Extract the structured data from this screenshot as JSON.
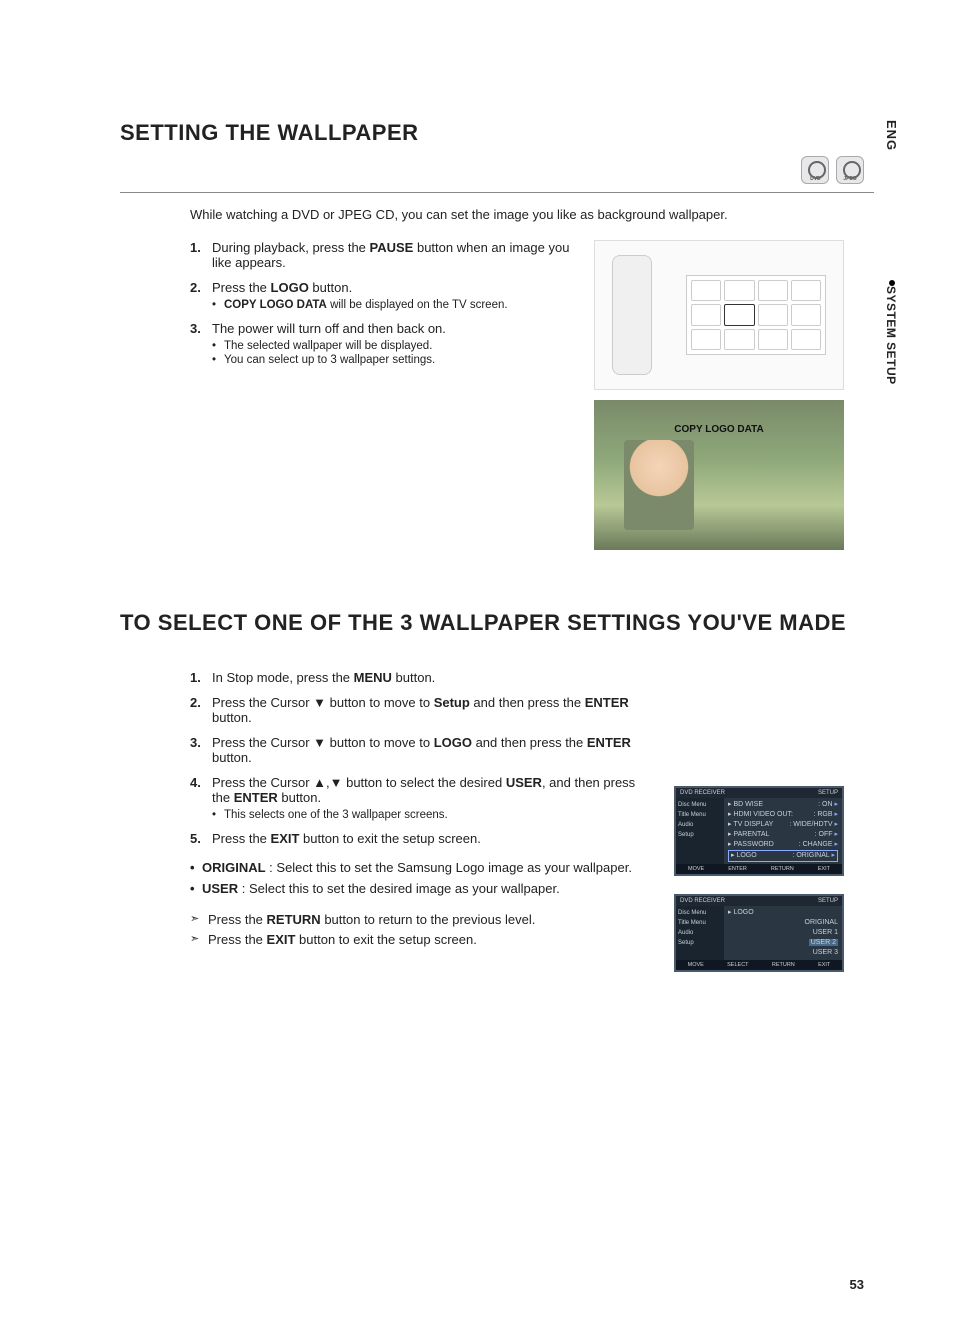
{
  "side": {
    "lang": "ENG",
    "section_label": "SYSTEM SETUP"
  },
  "discs": {
    "label1": "DVD",
    "label2": "JPEG"
  },
  "section1": {
    "title": "SETTING THE WALLPAPER",
    "intro": "While watching a DVD or JPEG CD, you can set the image you like as background wallpaper.",
    "steps": [
      {
        "num": "1.",
        "text_a": "During playback, press the ",
        "bold_a": "PAUSE",
        "text_b": " button when an image you like appears."
      },
      {
        "num": "2.",
        "text_a": "Press the ",
        "bold_a": "LOGO",
        "text_b": " button.",
        "sub": [
          {
            "bold": "COPY LOGO DATA",
            "rest": " will be displayed on the TV screen."
          }
        ]
      },
      {
        "num": "3.",
        "text_a": "The power will turn off and then back on.",
        "sub": [
          {
            "rest": "The selected wallpaper will be displayed."
          },
          {
            "rest": "You can select up to 3 wallpaper settings."
          }
        ]
      }
    ],
    "photo_overlay": "COPY LOGO DATA"
  },
  "section2": {
    "title": "TO SELECT ONE OF THE 3 WALLPAPER SETTINGS YOU'VE MADE",
    "steps": [
      {
        "num": "1.",
        "pre": "In Stop mode, press the ",
        "b1": "MENU",
        "post": " button."
      },
      {
        "num": "2.",
        "pre": "Press the Cursor ▼ button to move to ",
        "b1": "Setup",
        "mid": " and then press the ",
        "b2": "ENTER",
        "post": " button."
      },
      {
        "num": "3.",
        "pre": "Press the Cursor ▼ button to move to ",
        "b1": "LOGO",
        "mid": " and then press the ",
        "b2": "ENTER",
        "post": " button."
      },
      {
        "num": "4.",
        "pre": "Press the Cursor ▲,▼ button to select the desired ",
        "b1": "USER",
        "mid": ", and then press the ",
        "b2": "ENTER",
        "post": " button.",
        "sub": [
          {
            "rest": "This selects one of the 3 wallpaper screens."
          }
        ]
      },
      {
        "num": "5.",
        "pre": "Press the ",
        "b1": "EXIT",
        "post": " button to exit the setup screen."
      }
    ],
    "defs": {
      "original_label": "ORIGINAL",
      "original_text": " : Select this to set the Samsung Logo image as your wallpaper.",
      "user_label": "USER",
      "user_text": " : Select this to set the desired image as your wallpaper."
    },
    "notes": {
      "return_pre": "Press the ",
      "return_b": "RETURN",
      "return_post": " button to return to the previous level.",
      "exit_pre": "Press the ",
      "exit_b": "EXIT",
      "exit_post": " button to exit the setup screen."
    }
  },
  "osd1": {
    "hdr_l": "DVD RECEIVER",
    "hdr_r": "SETUP",
    "side_items": [
      "Disc Menu",
      "Title Menu",
      "Audio",
      "Setup"
    ],
    "rows": [
      {
        "l": "BD WISE",
        "r": "ON"
      },
      {
        "l": "HDMI VIDEO OUT:",
        "r": "RGB"
      },
      {
        "l": "TV DISPLAY",
        "r": "WIDE/HDTV"
      },
      {
        "l": "PARENTAL",
        "r": "OFF"
      },
      {
        "l": "PASSWORD",
        "r": "CHANGE"
      },
      {
        "l": "LOGO",
        "r": "ORIGINAL",
        "hl": true
      }
    ],
    "ftr": [
      "MOVE",
      "ENTER",
      "RETURN",
      "EXIT"
    ]
  },
  "osd2": {
    "hdr_l": "DVD RECEIVER",
    "hdr_r": "SETUP",
    "side_items": [
      "Disc Menu",
      "Title Menu",
      "Audio",
      "Setup"
    ],
    "menu_label": "LOGO",
    "options": [
      "ORIGINAL",
      "USER 1",
      "USER 2",
      "USER 3"
    ],
    "selected_index": 2,
    "ftr": [
      "MOVE",
      "SELECT",
      "RETURN",
      "EXIT"
    ]
  },
  "page_number": "53"
}
